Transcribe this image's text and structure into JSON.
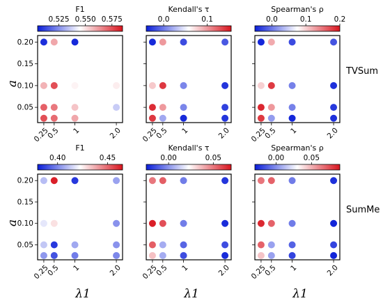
{
  "figure": {
    "row_labels": [
      "TVSum",
      "SumMe"
    ],
    "y_axis_label": "a",
    "x_axis_label": "λ1",
    "colormap": {
      "low": "#0a1ed8",
      "mid": "#ffffff",
      "high": "#d8141e"
    }
  },
  "chart_data": [
    {
      "type": "scatter",
      "dataset": "TVSum",
      "metric": "F1",
      "colorbar": {
        "title": "F1",
        "range": [
          0.505,
          0.585
        ],
        "ticks": [
          0.525,
          0.55,
          0.575
        ],
        "tick_labels": [
          "0.525",
          "0.550",
          "0.575"
        ]
      },
      "x_ticks": [
        0.25,
        0.5,
        1,
        2.0
      ],
      "x_tick_labels": [
        "0.25",
        "0.5",
        "1",
        "2.0"
      ],
      "y_ticks": [
        0.05,
        0.1,
        0.15,
        0.2
      ],
      "y_tick_labels": [
        "0.05",
        "0.10",
        "0.15",
        "0.20"
      ],
      "xlim": [
        0.1,
        2.15
      ],
      "ylim": [
        0.015,
        0.215
      ],
      "points": [
        {
          "x": 0.25,
          "y": 0.2,
          "v": 0.508
        },
        {
          "x": 0.5,
          "y": 0.2,
          "v": 0.56
        },
        {
          "x": 1,
          "y": 0.2,
          "v": 0.507
        },
        {
          "x": 0.25,
          "y": 0.1,
          "v": 0.558
        },
        {
          "x": 0.5,
          "y": 0.1,
          "v": 0.575
        },
        {
          "x": 1,
          "y": 0.1,
          "v": 0.547
        },
        {
          "x": 2.0,
          "y": 0.1,
          "v": 0.548
        },
        {
          "x": 0.25,
          "y": 0.05,
          "v": 0.572
        },
        {
          "x": 0.5,
          "y": 0.05,
          "v": 0.568
        },
        {
          "x": 1,
          "y": 0.05,
          "v": 0.555
        },
        {
          "x": 2.0,
          "y": 0.05,
          "v": 0.536
        },
        {
          "x": 0.25,
          "y": 0.025,
          "v": 0.575
        },
        {
          "x": 0.5,
          "y": 0.025,
          "v": 0.57
        },
        {
          "x": 1,
          "y": 0.025,
          "v": 0.56
        }
      ]
    },
    {
      "type": "scatter",
      "dataset": "TVSum",
      "metric": "Kendall's τ",
      "colorbar": {
        "title": "Kendall's τ",
        "range": [
          -0.04,
          0.155
        ],
        "ticks": [
          0.0,
          0.1
        ],
        "tick_labels": [
          "0.0",
          "0.1"
        ]
      },
      "x_ticks": [
        0.25,
        0.5,
        1,
        2.0
      ],
      "x_tick_labels": [
        "0.25",
        "0.5",
        "1",
        "2.0"
      ],
      "y_ticks": [
        0.05,
        0.1,
        0.15,
        0.2
      ],
      "y_tick_labels": [
        "0.05",
        "0.10",
        "0.15",
        "0.20"
      ],
      "xlim": [
        0.1,
        2.15
      ],
      "ylim": [
        0.015,
        0.215
      ],
      "points": [
        {
          "x": 0.25,
          "y": 0.2,
          "v": -0.035
        },
        {
          "x": 0.5,
          "y": 0.2,
          "v": 0.1
        },
        {
          "x": 1,
          "y": 0.2,
          "v": -0.02
        },
        {
          "x": 2.0,
          "y": 0.2,
          "v": -0.015
        },
        {
          "x": 0.25,
          "y": 0.1,
          "v": 0.08
        },
        {
          "x": 0.5,
          "y": 0.1,
          "v": 0.14
        },
        {
          "x": 1,
          "y": 0.1,
          "v": 0.005
        },
        {
          "x": 2.0,
          "y": 0.1,
          "v": -0.03
        },
        {
          "x": 0.25,
          "y": 0.05,
          "v": 0.145
        },
        {
          "x": 0.5,
          "y": 0.05,
          "v": 0.1
        },
        {
          "x": 1,
          "y": 0.05,
          "v": 0.005
        },
        {
          "x": 2.0,
          "y": 0.05,
          "v": -0.025
        },
        {
          "x": 0.25,
          "y": 0.025,
          "v": 0.14
        },
        {
          "x": 0.5,
          "y": 0.025,
          "v": 0.02
        },
        {
          "x": 1,
          "y": 0.025,
          "v": -0.035
        },
        {
          "x": 2.0,
          "y": 0.025,
          "v": -0.03
        }
      ]
    },
    {
      "type": "scatter",
      "dataset": "TVSum",
      "metric": "Spearman's ρ",
      "colorbar": {
        "title": "Spearman's ρ",
        "range": [
          -0.05,
          0.2
        ],
        "ticks": [
          0.0,
          0.1,
          0.2
        ],
        "tick_labels": [
          "0.0",
          "0.1",
          "0.2"
        ]
      },
      "x_ticks": [
        0.25,
        0.5,
        1,
        2.0
      ],
      "x_tick_labels": [
        "0.25",
        "0.5",
        "1",
        "2.0"
      ],
      "y_ticks": [
        0.05,
        0.1,
        0.15,
        0.2
      ],
      "y_tick_labels": [
        "0.05",
        "0.10",
        "0.15",
        "0.20"
      ],
      "xlim": [
        0.1,
        2.15
      ],
      "ylim": [
        0.015,
        0.215
      ],
      "points": [
        {
          "x": 0.25,
          "y": 0.2,
          "v": -0.045
        },
        {
          "x": 0.5,
          "y": 0.2,
          "v": 0.12
        },
        {
          "x": 1,
          "y": 0.2,
          "v": -0.025
        },
        {
          "x": 2.0,
          "y": 0.2,
          "v": -0.02
        },
        {
          "x": 0.25,
          "y": 0.1,
          "v": 0.1
        },
        {
          "x": 0.5,
          "y": 0.1,
          "v": 0.18
        },
        {
          "x": 1,
          "y": 0.1,
          "v": 0.005
        },
        {
          "x": 2.0,
          "y": 0.1,
          "v": -0.04
        },
        {
          "x": 0.25,
          "y": 0.05,
          "v": 0.19
        },
        {
          "x": 0.5,
          "y": 0.05,
          "v": 0.13
        },
        {
          "x": 1,
          "y": 0.05,
          "v": 0.005
        },
        {
          "x": 2.0,
          "y": 0.05,
          "v": -0.035
        },
        {
          "x": 0.25,
          "y": 0.025,
          "v": 0.18
        },
        {
          "x": 0.5,
          "y": 0.025,
          "v": 0.02
        },
        {
          "x": 1,
          "y": 0.025,
          "v": -0.045
        },
        {
          "x": 2.0,
          "y": 0.025,
          "v": -0.04
        }
      ]
    },
    {
      "type": "scatter",
      "dataset": "SumMe",
      "metric": "F1",
      "colorbar": {
        "title": "F1",
        "range": [
          0.38,
          0.465
        ],
        "ticks": [
          0.4,
          0.45
        ],
        "tick_labels": [
          "0.40",
          "0.45"
        ]
      },
      "x_ticks": [
        0.25,
        0.5,
        1,
        2.0
      ],
      "x_tick_labels": [
        "0.25",
        "0.5",
        "1",
        "2.0"
      ],
      "y_ticks": [
        0.05,
        0.1,
        0.15,
        0.2
      ],
      "y_tick_labels": [
        "0.05",
        "0.10",
        "0.15",
        "0.20"
      ],
      "xlim": [
        0.1,
        2.15
      ],
      "ylim": [
        0.015,
        0.215
      ],
      "points": [
        {
          "x": 0.25,
          "y": 0.2,
          "v": 0.41
        },
        {
          "x": 0.5,
          "y": 0.2,
          "v": 0.463
        },
        {
          "x": 1,
          "y": 0.2,
          "v": 0.385
        },
        {
          "x": 2.0,
          "y": 0.2,
          "v": 0.405
        },
        {
          "x": 0.25,
          "y": 0.1,
          "v": 0.418
        },
        {
          "x": 0.5,
          "y": 0.1,
          "v": 0.428
        },
        {
          "x": 2.0,
          "y": 0.1,
          "v": 0.402
        },
        {
          "x": 0.25,
          "y": 0.05,
          "v": 0.412
        },
        {
          "x": 0.5,
          "y": 0.05,
          "v": 0.385
        },
        {
          "x": 1,
          "y": 0.05,
          "v": 0.406
        },
        {
          "x": 2.0,
          "y": 0.05,
          "v": 0.402
        },
        {
          "x": 0.25,
          "y": 0.025,
          "v": 0.403
        },
        {
          "x": 0.5,
          "y": 0.025,
          "v": 0.39
        },
        {
          "x": 1,
          "y": 0.025,
          "v": 0.398
        },
        {
          "x": 2.0,
          "y": 0.025,
          "v": 0.4
        }
      ]
    },
    {
      "type": "scatter",
      "dataset": "SumMe",
      "metric": "Kendall's τ",
      "colorbar": {
        "title": "Kendall's τ",
        "range": [
          -0.025,
          0.07
        ],
        "ticks": [
          0.0,
          0.05
        ],
        "tick_labels": [
          "0.00",
          "0.05"
        ]
      },
      "x_ticks": [
        0.25,
        0.5,
        1,
        2.0
      ],
      "x_tick_labels": [
        "0.25",
        "0.5",
        "1",
        "2.0"
      ],
      "y_ticks": [
        0.05,
        0.1,
        0.15,
        0.2
      ],
      "y_tick_labels": [
        "0.05",
        "0.10",
        "0.15",
        "0.20"
      ],
      "xlim": [
        0.1,
        2.15
      ],
      "ylim": [
        0.015,
        0.215
      ],
      "points": [
        {
          "x": 0.25,
          "y": 0.2,
          "v": 0.05
        },
        {
          "x": 0.5,
          "y": 0.2,
          "v": 0.055
        },
        {
          "x": 1,
          "y": 0.2,
          "v": -0.005
        },
        {
          "x": 2.0,
          "y": 0.2,
          "v": -0.02
        },
        {
          "x": 0.25,
          "y": 0.1,
          "v": 0.068
        },
        {
          "x": 0.5,
          "y": 0.1,
          "v": 0.058
        },
        {
          "x": 1,
          "y": 0.1,
          "v": -0.005
        },
        {
          "x": 2.0,
          "y": 0.1,
          "v": -0.022
        },
        {
          "x": 0.25,
          "y": 0.05,
          "v": 0.055
        },
        {
          "x": 0.5,
          "y": 0.05,
          "v": 0.005
        },
        {
          "x": 1,
          "y": 0.05,
          "v": -0.01
        },
        {
          "x": 2.0,
          "y": 0.05,
          "v": -0.015
        },
        {
          "x": 0.25,
          "y": 0.025,
          "v": 0.035
        },
        {
          "x": 0.5,
          "y": 0.025,
          "v": 0.005
        },
        {
          "x": 1,
          "y": 0.025,
          "v": -0.015
        },
        {
          "x": 2.0,
          "y": 0.025,
          "v": -0.022
        }
      ]
    },
    {
      "type": "scatter",
      "dataset": "SumMe",
      "metric": "Spearman's ρ",
      "colorbar": {
        "title": "Spearman's ρ",
        "range": [
          -0.03,
          0.09
        ],
        "ticks": [
          0.0,
          0.05
        ],
        "tick_labels": [
          "0.00",
          "0.05"
        ]
      },
      "x_ticks": [
        0.25,
        0.5,
        1,
        2.0
      ],
      "x_tick_labels": [
        "0.25",
        "0.5",
        "1",
        "2.0"
      ],
      "y_ticks": [
        0.05,
        0.1,
        0.15,
        0.2
      ],
      "y_tick_labels": [
        "0.05",
        "0.10",
        "0.15",
        "0.20"
      ],
      "xlim": [
        0.1,
        2.15
      ],
      "ylim": [
        0.015,
        0.215
      ],
      "points": [
        {
          "x": 0.25,
          "y": 0.2,
          "v": 0.065
        },
        {
          "x": 0.5,
          "y": 0.2,
          "v": 0.07
        },
        {
          "x": 1,
          "y": 0.2,
          "v": -0.005
        },
        {
          "x": 2.0,
          "y": 0.2,
          "v": -0.025
        },
        {
          "x": 0.25,
          "y": 0.1,
          "v": 0.085
        },
        {
          "x": 0.5,
          "y": 0.1,
          "v": 0.07
        },
        {
          "x": 1,
          "y": 0.1,
          "v": -0.005
        },
        {
          "x": 2.0,
          "y": 0.1,
          "v": -0.028
        },
        {
          "x": 0.25,
          "y": 0.05,
          "v": 0.07
        },
        {
          "x": 0.5,
          "y": 0.05,
          "v": 0.005
        },
        {
          "x": 1,
          "y": 0.05,
          "v": -0.012
        },
        {
          "x": 2.0,
          "y": 0.05,
          "v": -0.02
        },
        {
          "x": 0.25,
          "y": 0.025,
          "v": 0.045
        },
        {
          "x": 0.5,
          "y": 0.025,
          "v": 0.005
        },
        {
          "x": 1,
          "y": 0.025,
          "v": -0.02
        },
        {
          "x": 2.0,
          "y": 0.025,
          "v": -0.028
        }
      ]
    }
  ]
}
